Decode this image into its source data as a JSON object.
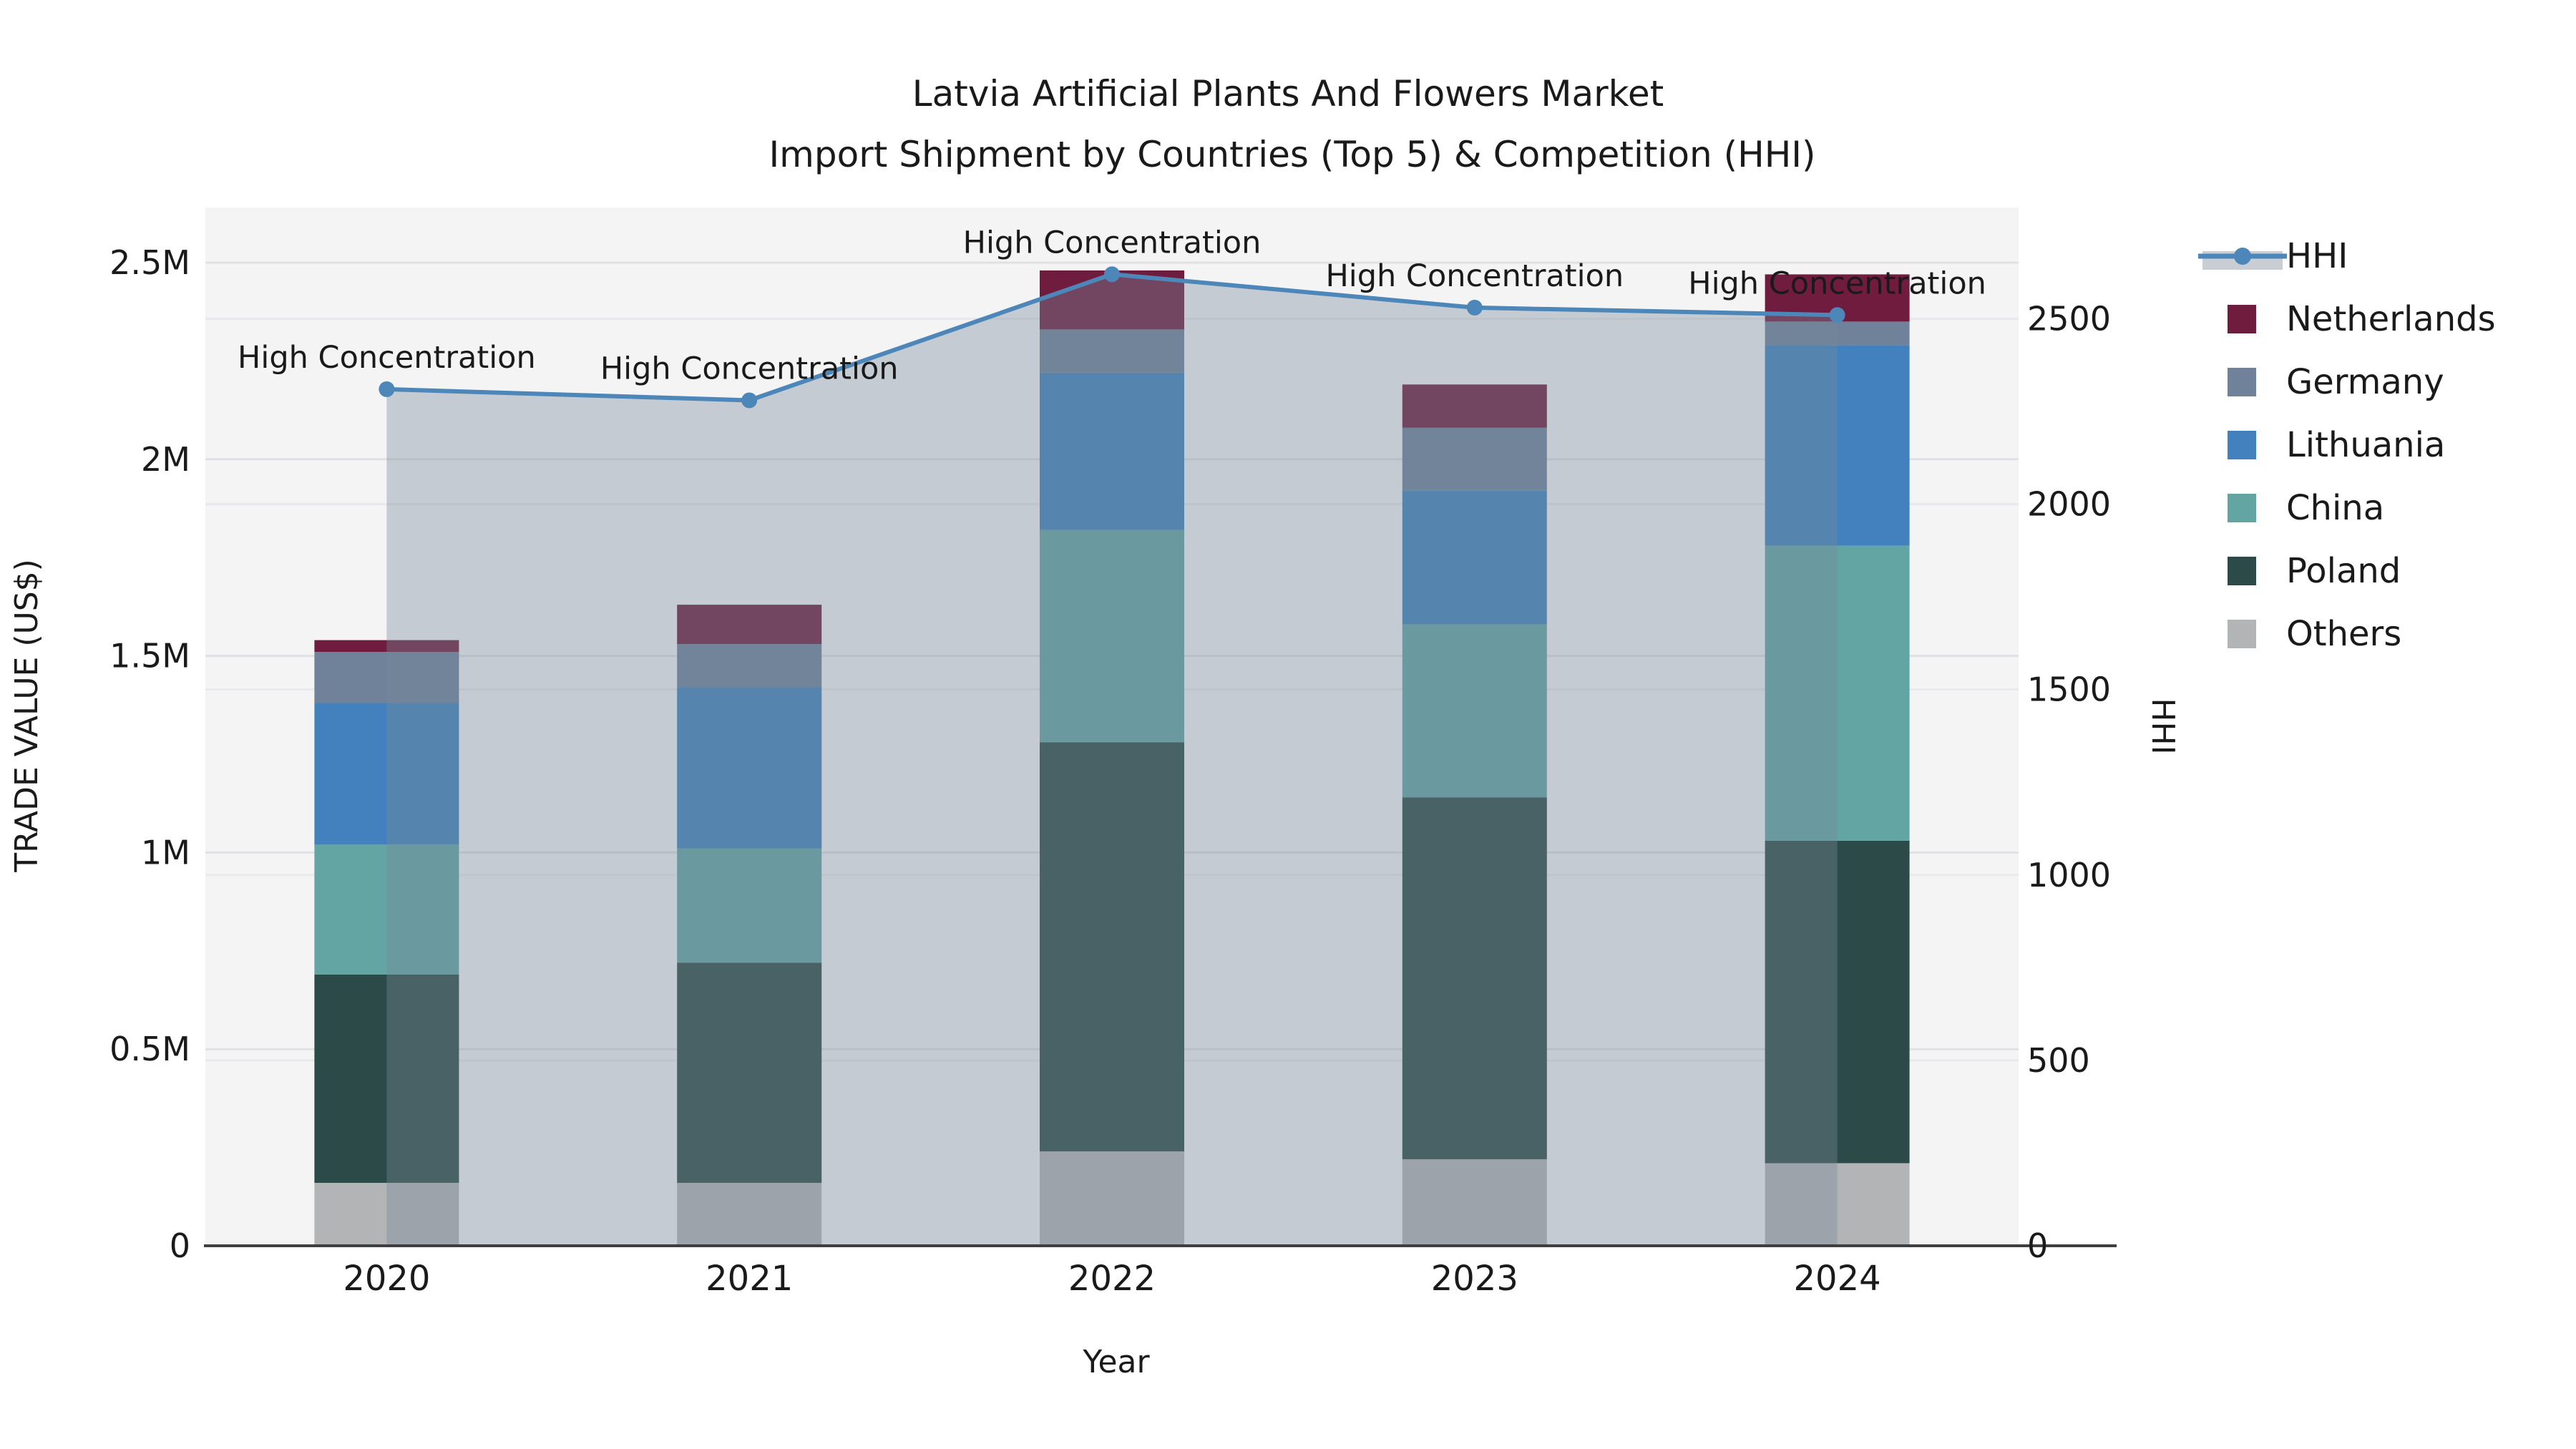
{
  "title": {
    "line1": "Latvia Artificial Plants And Flowers Market",
    "line2": "Import Shipment by Countries (Top 5) & Competition (HHI)"
  },
  "axes": {
    "x": {
      "label": "Year",
      "categories": [
        "2020",
        "2021",
        "2022",
        "2023",
        "2024"
      ]
    },
    "y_left": {
      "label": "TRADE VALUE (US$)",
      "tick_labels": [
        "0",
        "0.5M",
        "1M",
        "1.5M",
        "2M",
        "2.5M"
      ],
      "tick_values": [
        0,
        0.5,
        1.0,
        1.5,
        2.0,
        2.5
      ]
    },
    "y_right": {
      "label": "HHI",
      "tick_labels": [
        "0",
        "500",
        "1000",
        "1500",
        "2000",
        "2500"
      ],
      "tick_values": [
        0,
        500,
        1000,
        1500,
        2000,
        2500
      ]
    }
  },
  "legend": [
    {
      "label": "HHI",
      "type": "line",
      "color": "#4d86b8"
    },
    {
      "label": "Netherlands",
      "type": "box",
      "color": "#701c3e"
    },
    {
      "label": "Germany",
      "type": "box",
      "color": "#708299"
    },
    {
      "label": "Lithuania",
      "type": "box",
      "color": "#4281bd"
    },
    {
      "label": "China",
      "type": "box",
      "color": "#63a5a3"
    },
    {
      "label": "Poland",
      "type": "box",
      "color": "#2c4b48"
    },
    {
      "label": "Others",
      "type": "box",
      "color": "#b3b4b6"
    }
  ],
  "annotation": {
    "text": "High Concentration",
    "applies_to_years": [
      "2020",
      "2021",
      "2022",
      "2023",
      "2024"
    ]
  },
  "chart_data": {
    "type": "bar",
    "subtype": "stacked-bars-with-line-area",
    "title": "Latvia Artificial Plants And Flowers Market Import Shipment by Countries (Top 5) & Competition (HHI)",
    "xlabel": "Year",
    "ylabel_left": "TRADE VALUE (US$)",
    "ylabel_right": "HHI",
    "categories": [
      "2020",
      "2021",
      "2022",
      "2023",
      "2024"
    ],
    "stack_order": "bottom_to_top",
    "series": [
      {
        "name": "Others",
        "color": "#b3b4b6",
        "values_millions": [
          0.16,
          0.16,
          0.24,
          0.22,
          0.21
        ]
      },
      {
        "name": "Poland",
        "color": "#2c4b48",
        "values_millions": [
          0.53,
          0.56,
          1.04,
          0.92,
          0.82
        ]
      },
      {
        "name": "China",
        "color": "#63a5a3",
        "values_millions": [
          0.33,
          0.29,
          0.54,
          0.44,
          0.75
        ]
      },
      {
        "name": "Lithuania",
        "color": "#4281bd",
        "values_millions": [
          0.36,
          0.41,
          0.4,
          0.34,
          0.51
        ]
      },
      {
        "name": "Germany",
        "color": "#708299",
        "values_millions": [
          0.13,
          0.11,
          0.11,
          0.16,
          0.06
        ]
      },
      {
        "name": "Netherlands",
        "color": "#701c3e",
        "values_millions": [
          0.03,
          0.1,
          0.15,
          0.11,
          0.12
        ]
      }
    ],
    "line_series": {
      "name": "HHI",
      "color": "#4d86b8",
      "area_fill": "rgba(119,136,153,0.38)",
      "values": [
        2310,
        2280,
        2620,
        2530,
        2510
      ]
    },
    "ylim_left_millions": [
      0,
      2.64
    ],
    "ylim_right": [
      0,
      2800
    ],
    "grid": true,
    "legend_position": "right",
    "plot_bg": "#f4f4f5",
    "grid_color_left": "#dfe1e5",
    "grid_color_right": "#e8e9ec",
    "axis_line_color": "#3f3f3f"
  }
}
